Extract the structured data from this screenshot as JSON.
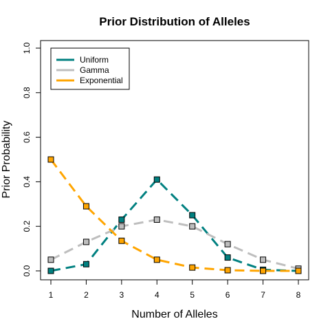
{
  "chart_data": {
    "type": "line",
    "title": "Prior Distribution of Alleles",
    "xlabel": "Number of Alleles",
    "ylabel": "Prior Probability",
    "x": [
      1,
      2,
      3,
      4,
      5,
      6,
      7,
      8
    ],
    "xticks": [
      "1",
      "2",
      "3",
      "4",
      "5",
      "6",
      "7",
      "8"
    ],
    "xlim": [
      1,
      8
    ],
    "yticks": [
      "0.0",
      "0.2",
      "0.4",
      "0.6",
      "0.8",
      "1.0"
    ],
    "ylim": [
      0,
      1
    ],
    "grid": false,
    "legend_position": "top-left",
    "series": [
      {
        "name": "Uniform",
        "color": "#008080",
        "line_style": "long-dash",
        "values": [
          0.0,
          0.03,
          0.23,
          0.41,
          0.25,
          0.06,
          0.005,
          0.0
        ]
      },
      {
        "name": "Gamma",
        "color": "#BEBEBE",
        "line_style": "long-dash",
        "values": [
          0.05,
          0.13,
          0.2,
          0.23,
          0.2,
          0.12,
          0.05,
          0.01
        ]
      },
      {
        "name": "Exponential",
        "color": "#FFA500",
        "line_style": "long-dash",
        "values": [
          0.5,
          0.29,
          0.135,
          0.05,
          0.015,
          0.003,
          0.0,
          0.0
        ]
      }
    ]
  }
}
